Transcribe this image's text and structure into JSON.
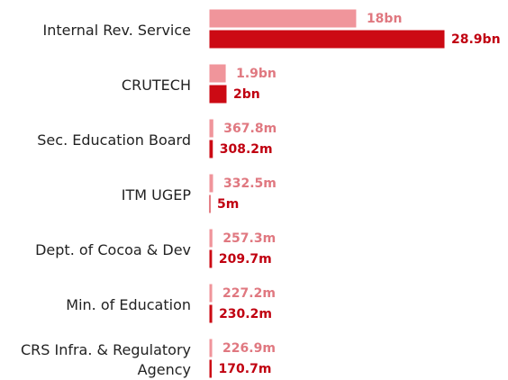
{
  "chart_data": {
    "type": "bar",
    "categories": [
      "Internal Rev. Service",
      "CRUTECH",
      "Sec. Education Board",
      "ITM UGEP",
      "Dept. of Cocoa & Dev",
      "Min. of Education",
      "CRS Infra. & Regulatory Agency"
    ],
    "series": [
      {
        "color": "#f0959b",
        "label_color": "#e07880",
        "values": [
          18000000000,
          1900000000,
          367800000,
          332500000,
          257300000,
          227200000,
          226900000
        ],
        "value_labels": [
          "18bn",
          "1.9bn",
          "367.8m",
          "332.5m",
          "257.3m",
          "227.2m",
          "226.9m"
        ]
      },
      {
        "color": "#cc0a14",
        "label_color": "#c00010",
        "values": [
          28900000000,
          2000000000,
          308200000,
          5000000,
          209700000,
          230200000,
          170700000
        ],
        "value_labels": [
          "28.9bn",
          "2bn",
          "308.2m",
          "5m",
          "209.7m",
          "230.2m",
          "170.7m"
        ]
      }
    ]
  }
}
